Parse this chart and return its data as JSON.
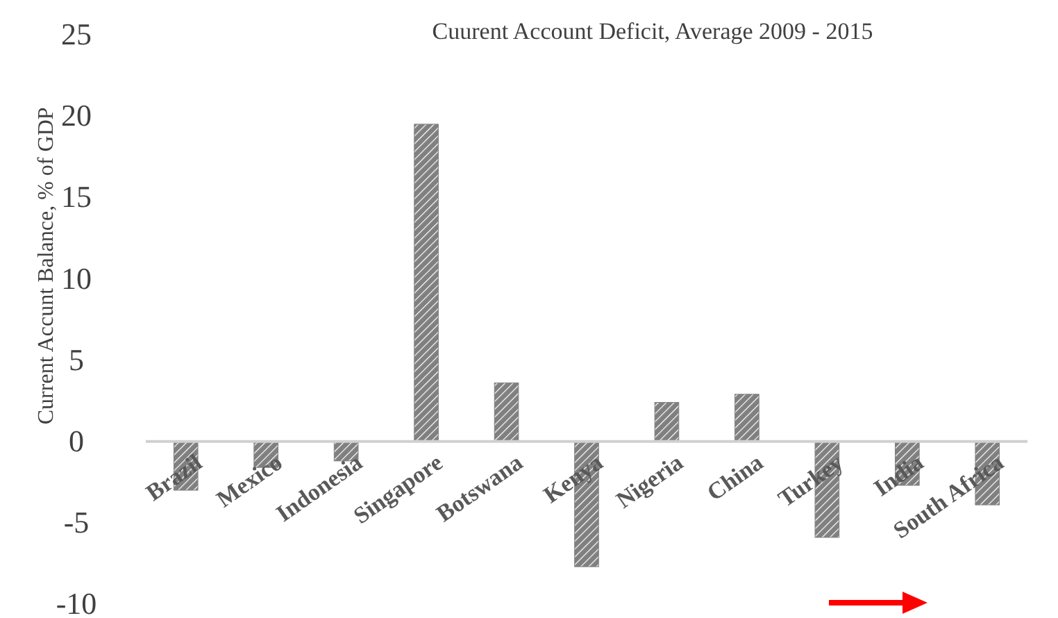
{
  "chart_data": {
    "type": "bar",
    "title": "Cuurent Account Deficit, Average 2009 - 2015",
    "ylabel": "Current Accunt Balance, % of GDP",
    "categories": [
      "Brazil",
      "Mexico",
      "Indonesia",
      "Singapore",
      "Botswana",
      "Kenya",
      "Nigeria",
      "China",
      "Turkey",
      "India",
      "South Africa"
    ],
    "values": [
      -3.0,
      -1.6,
      -1.2,
      19.5,
      3.6,
      -7.7,
      2.4,
      2.9,
      -5.9,
      -2.7,
      -3.9
    ],
    "color": "#808080",
    "ylim": [
      -10,
      25
    ],
    "yticks": [
      -10,
      -5,
      0,
      5,
      10,
      15,
      20,
      25
    ],
    "grid": false
  }
}
